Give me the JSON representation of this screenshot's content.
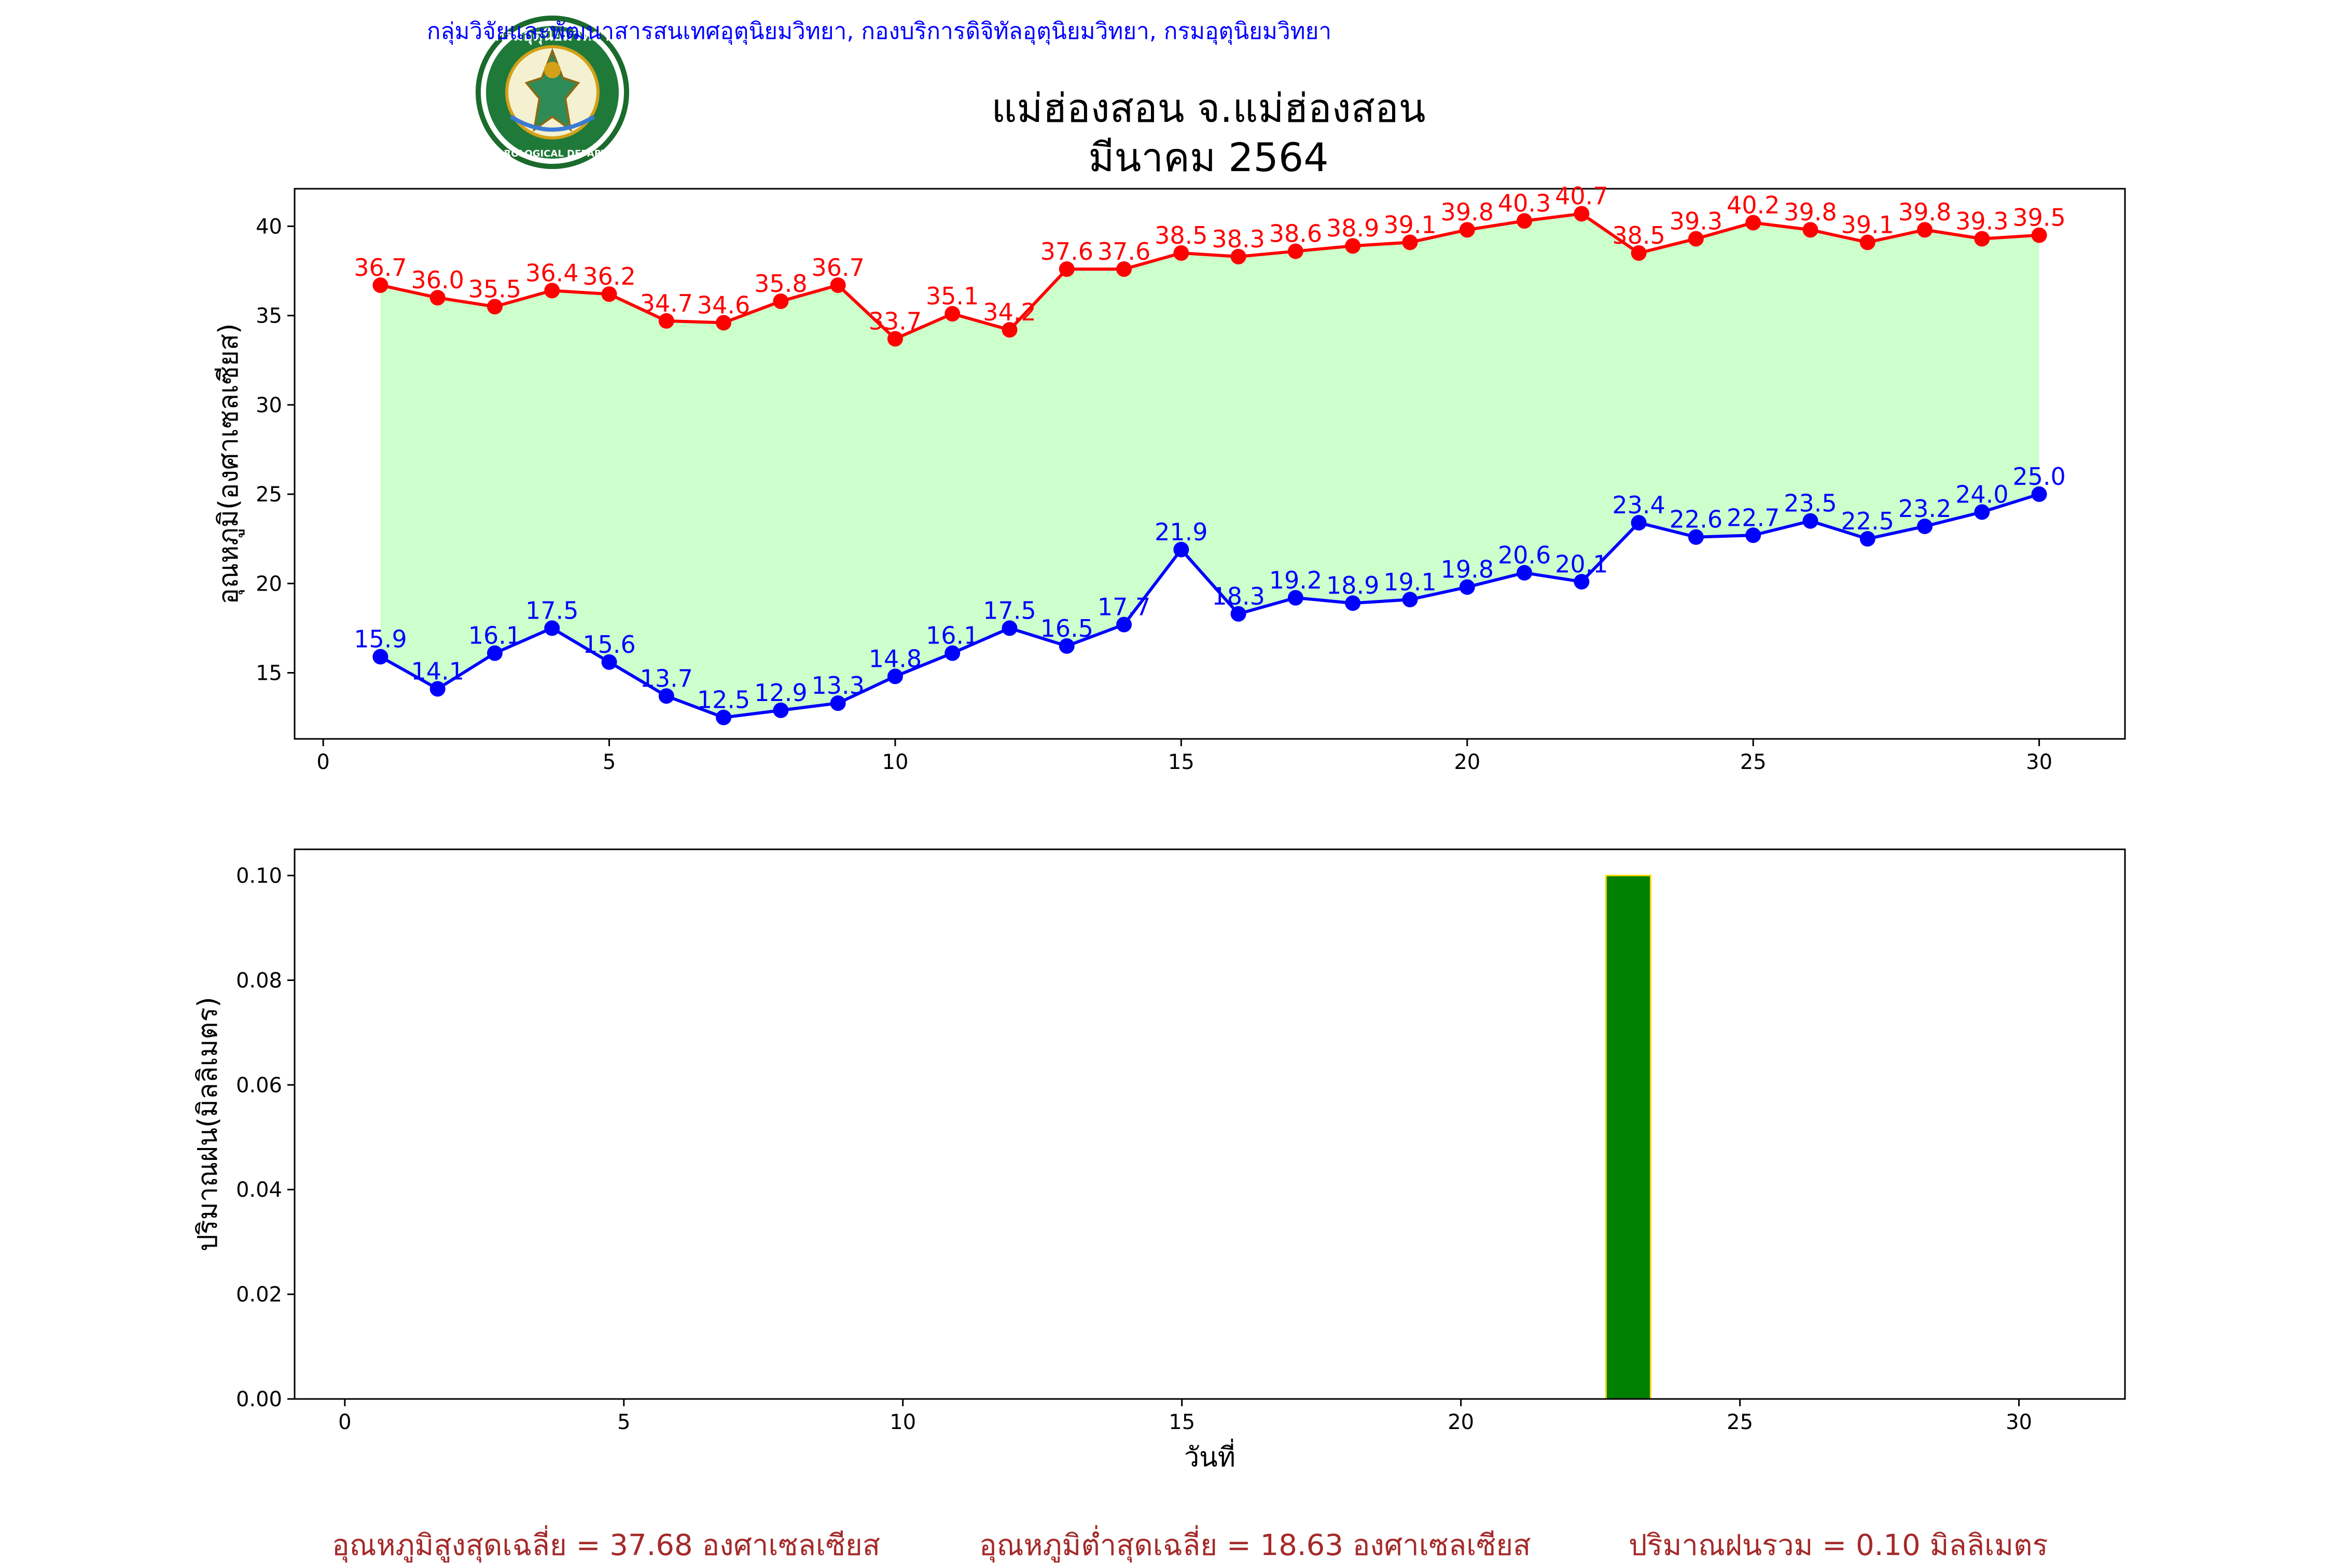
{
  "header": {
    "credit": "กลุ่มวิจัยและพัฒนาสารสนเทศอุตุนิยมวิทยา, กองบริการดิจิทัลอุตุนิยมวิทยา, กรมอุตุนิยมวิทยา",
    "title_line1": "แม่ฮ่องสอน จ.แม่ฮ่องสอน",
    "title_line2": "มีนาคม 2564",
    "logo_top_text": "กรมอุตุนิยมวิทยา",
    "logo_bottom_text": "METEOROLOGICAL DEPARTMENT"
  },
  "colors": {
    "max_temp": "#ff0000",
    "min_temp": "#0000ff",
    "fill": "#ccffcc",
    "rain_bar": "#008000",
    "rain_edge": "#ffd700",
    "footer": "#a52a2a",
    "credit": "#0000ff"
  },
  "chart_data": [
    {
      "type": "line",
      "ylabel": "อุณหภูมิ(องศาเซลเซียส)",
      "xlabel": "",
      "xlim": [
        -0.5,
        31.5
      ],
      "ylim": [
        11.3,
        42.1
      ],
      "xticks": [
        0,
        5,
        10,
        15,
        20,
        25,
        30
      ],
      "yticks": [
        15,
        20,
        25,
        30,
        35,
        40
      ],
      "x": [
        1,
        2,
        3,
        4,
        5,
        6,
        7,
        8,
        9,
        10,
        11,
        12,
        13,
        14,
        15,
        16,
        17,
        18,
        19,
        20,
        21,
        22,
        23,
        24,
        25,
        26,
        27,
        28,
        29,
        30
      ],
      "series": [
        {
          "values": [
            36.7,
            36.0,
            35.5,
            36.4,
            36.2,
            34.7,
            34.6,
            35.8,
            36.7,
            33.7,
            35.1,
            34.2,
            37.6,
            37.6,
            38.5,
            38.3,
            38.6,
            38.9,
            39.1,
            39.8,
            40.3,
            40.7,
            38.5,
            39.3,
            40.2,
            39.8,
            39.1,
            39.8,
            39.3,
            39.5
          ]
        },
        {
          "values": [
            15.9,
            14.1,
            16.1,
            17.5,
            15.6,
            13.7,
            12.5,
            12.9,
            13.3,
            14.8,
            16.1,
            17.5,
            16.5,
            17.7,
            21.9,
            18.3,
            19.2,
            18.9,
            19.1,
            19.8,
            20.6,
            20.1,
            23.4,
            22.6,
            22.7,
            23.5,
            22.5,
            23.2,
            24.0,
            25.0
          ]
        }
      ]
    },
    {
      "type": "bar",
      "ylabel": "ปริมาณฝน(มิลลิเมตร)",
      "xlabel": "วันที่",
      "xlim": [
        -0.9,
        31.9
      ],
      "ylim": [
        0,
        0.105
      ],
      "xticks": [
        0,
        5,
        10,
        15,
        20,
        25,
        30
      ],
      "yticks": [
        "0.00",
        "0.02",
        "0.04",
        "0.06",
        "0.08",
        "0.10"
      ],
      "x": [
        1,
        2,
        3,
        4,
        5,
        6,
        7,
        8,
        9,
        10,
        11,
        12,
        13,
        14,
        15,
        16,
        17,
        18,
        19,
        20,
        21,
        22,
        23,
        24,
        25,
        26,
        27,
        28,
        29,
        30
      ],
      "values": [
        0,
        0,
        0,
        0,
        0,
        0,
        0,
        0,
        0,
        0,
        0,
        0,
        0,
        0,
        0,
        0,
        0,
        0,
        0,
        0,
        0,
        0,
        0.1,
        0,
        0,
        0,
        0,
        0,
        0,
        0
      ]
    }
  ],
  "footer": {
    "avg_max": "อุณหภูมิสูงสุดเฉลี่ย = 37.68 องศาเซลเซียส",
    "avg_min": "อุณหภูมิต่ำสุดเฉลี่ย = 18.63 องศาเซลเซียส",
    "total_rain": "ปริมาณฝนรวม = 0.10 มิลลิเมตร"
  }
}
